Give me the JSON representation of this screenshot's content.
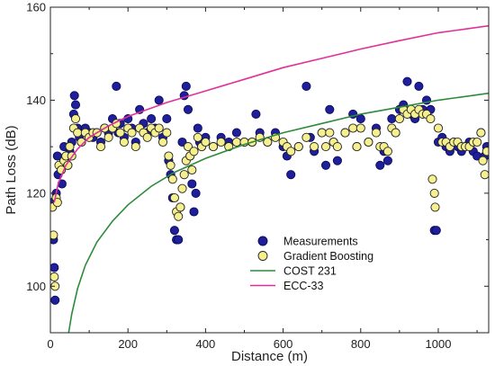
{
  "chart_data": {
    "type": "scatter",
    "xlabel": "Distance (m)",
    "ylabel": "Path Loss (dB)",
    "xlim": [
      0,
      1130
    ],
    "ylim": [
      90,
      160
    ],
    "x_ticks": [
      0,
      200,
      400,
      600,
      800,
      1000
    ],
    "y_ticks": [
      100,
      120,
      140,
      160
    ],
    "x_tick_labels": [
      "0",
      "200",
      "400",
      "600",
      "800",
      "1000"
    ],
    "y_tick_labels": [
      "100",
      "120",
      "140",
      "160"
    ],
    "grid": false,
    "legend_position": "bottom-center",
    "legend": [
      {
        "label": "Measurements",
        "kind": "marker",
        "color": "#1f1f9c"
      },
      {
        "label": "Gradient Boosting",
        "kind": "marker",
        "color": "#f5ef8f"
      },
      {
        "label": "COST 231",
        "kind": "line",
        "color": "#2e8b3a"
      },
      {
        "label": "ECC-33",
        "kind": "line",
        "color": "#e0309a"
      }
    ],
    "series": [
      {
        "name": "Measurements",
        "kind": "scatter",
        "color": "#1f1f9c",
        "points": [
          [
            5,
            118
          ],
          [
            8,
            110
          ],
          [
            10,
            104
          ],
          [
            12,
            97
          ],
          [
            15,
            120
          ],
          [
            18,
            128
          ],
          [
            20,
            124
          ],
          [
            25,
            126
          ],
          [
            30,
            122
          ],
          [
            35,
            130
          ],
          [
            40,
            127
          ],
          [
            45,
            126
          ],
          [
            50,
            129
          ],
          [
            55,
            131
          ],
          [
            60,
            137
          ],
          [
            62,
            141
          ],
          [
            65,
            139
          ],
          [
            70,
            134
          ],
          [
            75,
            132
          ],
          [
            80,
            131
          ],
          [
            90,
            134
          ],
          [
            100,
            133
          ],
          [
            110,
            132
          ],
          [
            120,
            133
          ],
          [
            130,
            131
          ],
          [
            140,
            134
          ],
          [
            150,
            133
          ],
          [
            160,
            136
          ],
          [
            170,
            143
          ],
          [
            175,
            133
          ],
          [
            180,
            135
          ],
          [
            190,
            132
          ],
          [
            200,
            136
          ],
          [
            210,
            134
          ],
          [
            220,
            131
          ],
          [
            230,
            138
          ],
          [
            240,
            135
          ],
          [
            250,
            133
          ],
          [
            260,
            136
          ],
          [
            270,
            134
          ],
          [
            280,
            140
          ],
          [
            290,
            132
          ],
          [
            300,
            136
          ],
          [
            305,
            127
          ],
          [
            310,
            124
          ],
          [
            315,
            119
          ],
          [
            320,
            112
          ],
          [
            325,
            110
          ],
          [
            330,
            110
          ],
          [
            335,
            117
          ],
          [
            340,
            131
          ],
          [
            345,
            141
          ],
          [
            350,
            143
          ],
          [
            355,
            138
          ],
          [
            360,
            128
          ],
          [
            365,
            122
          ],
          [
            370,
            116
          ],
          [
            375,
            120
          ],
          [
            380,
            134
          ],
          [
            385,
            131
          ],
          [
            390,
            130
          ],
          [
            400,
            132
          ],
          [
            420,
            130
          ],
          [
            440,
            132
          ],
          [
            460,
            131
          ],
          [
            480,
            133
          ],
          [
            500,
            131
          ],
          [
            520,
            131
          ],
          [
            530,
            137
          ],
          [
            540,
            133
          ],
          [
            560,
            131
          ],
          [
            580,
            133
          ],
          [
            600,
            130
          ],
          [
            610,
            128
          ],
          [
            620,
            124
          ],
          [
            640,
            130
          ],
          [
            660,
            143
          ],
          [
            670,
            132
          ],
          [
            680,
            129
          ],
          [
            700,
            133
          ],
          [
            710,
            126
          ],
          [
            720,
            138
          ],
          [
            730,
            131
          ],
          [
            740,
            127
          ],
          [
            760,
            133
          ],
          [
            780,
            137
          ],
          [
            790,
            130
          ],
          [
            800,
            136
          ],
          [
            820,
            131
          ],
          [
            840,
            134
          ],
          [
            850,
            126
          ],
          [
            860,
            129
          ],
          [
            870,
            127
          ],
          [
            880,
            136
          ],
          [
            890,
            133
          ],
          [
            900,
            138
          ],
          [
            910,
            139
          ],
          [
            920,
            144
          ],
          [
            930,
            137
          ],
          [
            940,
            136
          ],
          [
            950,
            143
          ],
          [
            960,
            138
          ],
          [
            970,
            140
          ],
          [
            980,
            138
          ],
          [
            990,
            112
          ],
          [
            995,
            112
          ],
          [
            1000,
            131
          ],
          [
            1010,
            132
          ],
          [
            1020,
            130
          ],
          [
            1030,
            129
          ],
          [
            1040,
            131
          ],
          [
            1050,
            130
          ],
          [
            1060,
            129
          ],
          [
            1070,
            130
          ],
          [
            1080,
            131
          ],
          [
            1090,
            129
          ],
          [
            1100,
            128
          ],
          [
            1110,
            133
          ],
          [
            1120,
            128
          ],
          [
            1125,
            130
          ]
        ]
      },
      {
        "name": "Gradient Boosting",
        "kind": "scatter",
        "color": "#f5ef8f",
        "points": [
          [
            5,
            117
          ],
          [
            8,
            111
          ],
          [
            10,
            102
          ],
          [
            12,
            100
          ],
          [
            15,
            119
          ],
          [
            18,
            118
          ],
          [
            22,
            126
          ],
          [
            28,
            125
          ],
          [
            35,
            127
          ],
          [
            40,
            128
          ],
          [
            45,
            126
          ],
          [
            50,
            130
          ],
          [
            55,
            128
          ],
          [
            60,
            134
          ],
          [
            65,
            136
          ],
          [
            70,
            133
          ],
          [
            80,
            131
          ],
          [
            90,
            133
          ],
          [
            100,
            132
          ],
          [
            110,
            133
          ],
          [
            120,
            133
          ],
          [
            130,
            130
          ],
          [
            140,
            134
          ],
          [
            150,
            132
          ],
          [
            160,
            134
          ],
          [
            170,
            135
          ],
          [
            180,
            133
          ],
          [
            190,
            131
          ],
          [
            200,
            134
          ],
          [
            210,
            133
          ],
          [
            220,
            130
          ],
          [
            230,
            134
          ],
          [
            240,
            133
          ],
          [
            250,
            132
          ],
          [
            260,
            134
          ],
          [
            270,
            133
          ],
          [
            280,
            134
          ],
          [
            290,
            131
          ],
          [
            300,
            133
          ],
          [
            305,
            128
          ],
          [
            310,
            126
          ],
          [
            315,
            123
          ],
          [
            320,
            119
          ],
          [
            325,
            116
          ],
          [
            330,
            115
          ],
          [
            335,
            117
          ],
          [
            340,
            121
          ],
          [
            345,
            124
          ],
          [
            350,
            127
          ],
          [
            355,
            130
          ],
          [
            360,
            128
          ],
          [
            365,
            125
          ],
          [
            370,
            129
          ],
          [
            380,
            132
          ],
          [
            390,
            130
          ],
          [
            400,
            131
          ],
          [
            420,
            130
          ],
          [
            440,
            131
          ],
          [
            460,
            130
          ],
          [
            480,
            131
          ],
          [
            500,
            131
          ],
          [
            520,
            131
          ],
          [
            540,
            132
          ],
          [
            560,
            131
          ],
          [
            580,
            132
          ],
          [
            600,
            131
          ],
          [
            610,
            130
          ],
          [
            620,
            129
          ],
          [
            640,
            130
          ],
          [
            660,
            132
          ],
          [
            680,
            130
          ],
          [
            700,
            133
          ],
          [
            710,
            130
          ],
          [
            720,
            133
          ],
          [
            730,
            131
          ],
          [
            740,
            130
          ],
          [
            760,
            133
          ],
          [
            780,
            134
          ],
          [
            790,
            130
          ],
          [
            800,
            134
          ],
          [
            820,
            131
          ],
          [
            840,
            133
          ],
          [
            850,
            130
          ],
          [
            860,
            130
          ],
          [
            870,
            129
          ],
          [
            880,
            134
          ],
          [
            890,
            133
          ],
          [
            900,
            136
          ],
          [
            910,
            138
          ],
          [
            920,
            137
          ],
          [
            930,
            138
          ],
          [
            940,
            137
          ],
          [
            950,
            138
          ],
          [
            960,
            137
          ],
          [
            970,
            137
          ],
          [
            980,
            136
          ],
          [
            985,
            123
          ],
          [
            990,
            120
          ],
          [
            992,
            117
          ],
          [
            1000,
            134
          ],
          [
            1010,
            131
          ],
          [
            1020,
            131
          ],
          [
            1030,
            130
          ],
          [
            1040,
            131
          ],
          [
            1050,
            131
          ],
          [
            1060,
            130
          ],
          [
            1070,
            130
          ],
          [
            1080,
            130
          ],
          [
            1090,
            131
          ],
          [
            1100,
            131
          ],
          [
            1110,
            133
          ],
          [
            1115,
            127
          ],
          [
            1120,
            124
          ],
          [
            1125,
            129
          ]
        ]
      },
      {
        "name": "COST 231",
        "kind": "line",
        "color": "#2e8b3a",
        "points": [
          [
            47,
            90
          ],
          [
            55,
            94
          ],
          [
            70,
            99.5
          ],
          [
            90,
            104.5
          ],
          [
            120,
            109.5
          ],
          [
            160,
            114
          ],
          [
            200,
            117.5
          ],
          [
            260,
            121.5
          ],
          [
            320,
            124.5
          ],
          [
            400,
            127.5
          ],
          [
            500,
            130.5
          ],
          [
            600,
            133
          ],
          [
            700,
            135
          ],
          [
            800,
            137
          ],
          [
            900,
            138.5
          ],
          [
            1000,
            140
          ],
          [
            1130,
            141.5
          ]
        ]
      },
      {
        "name": "ECC-33",
        "kind": "line",
        "color": "#e0309a",
        "points": [
          [
            10,
            118
          ],
          [
            20,
            122
          ],
          [
            40,
            126
          ],
          [
            70,
            129.5
          ],
          [
            100,
            132
          ],
          [
            150,
            134.5
          ],
          [
            200,
            136.5
          ],
          [
            300,
            139.5
          ],
          [
            400,
            142
          ],
          [
            500,
            144.5
          ],
          [
            600,
            147
          ],
          [
            700,
            149
          ],
          [
            800,
            151
          ],
          [
            900,
            152.8
          ],
          [
            1000,
            154.5
          ],
          [
            1130,
            156
          ]
        ]
      }
    ]
  }
}
